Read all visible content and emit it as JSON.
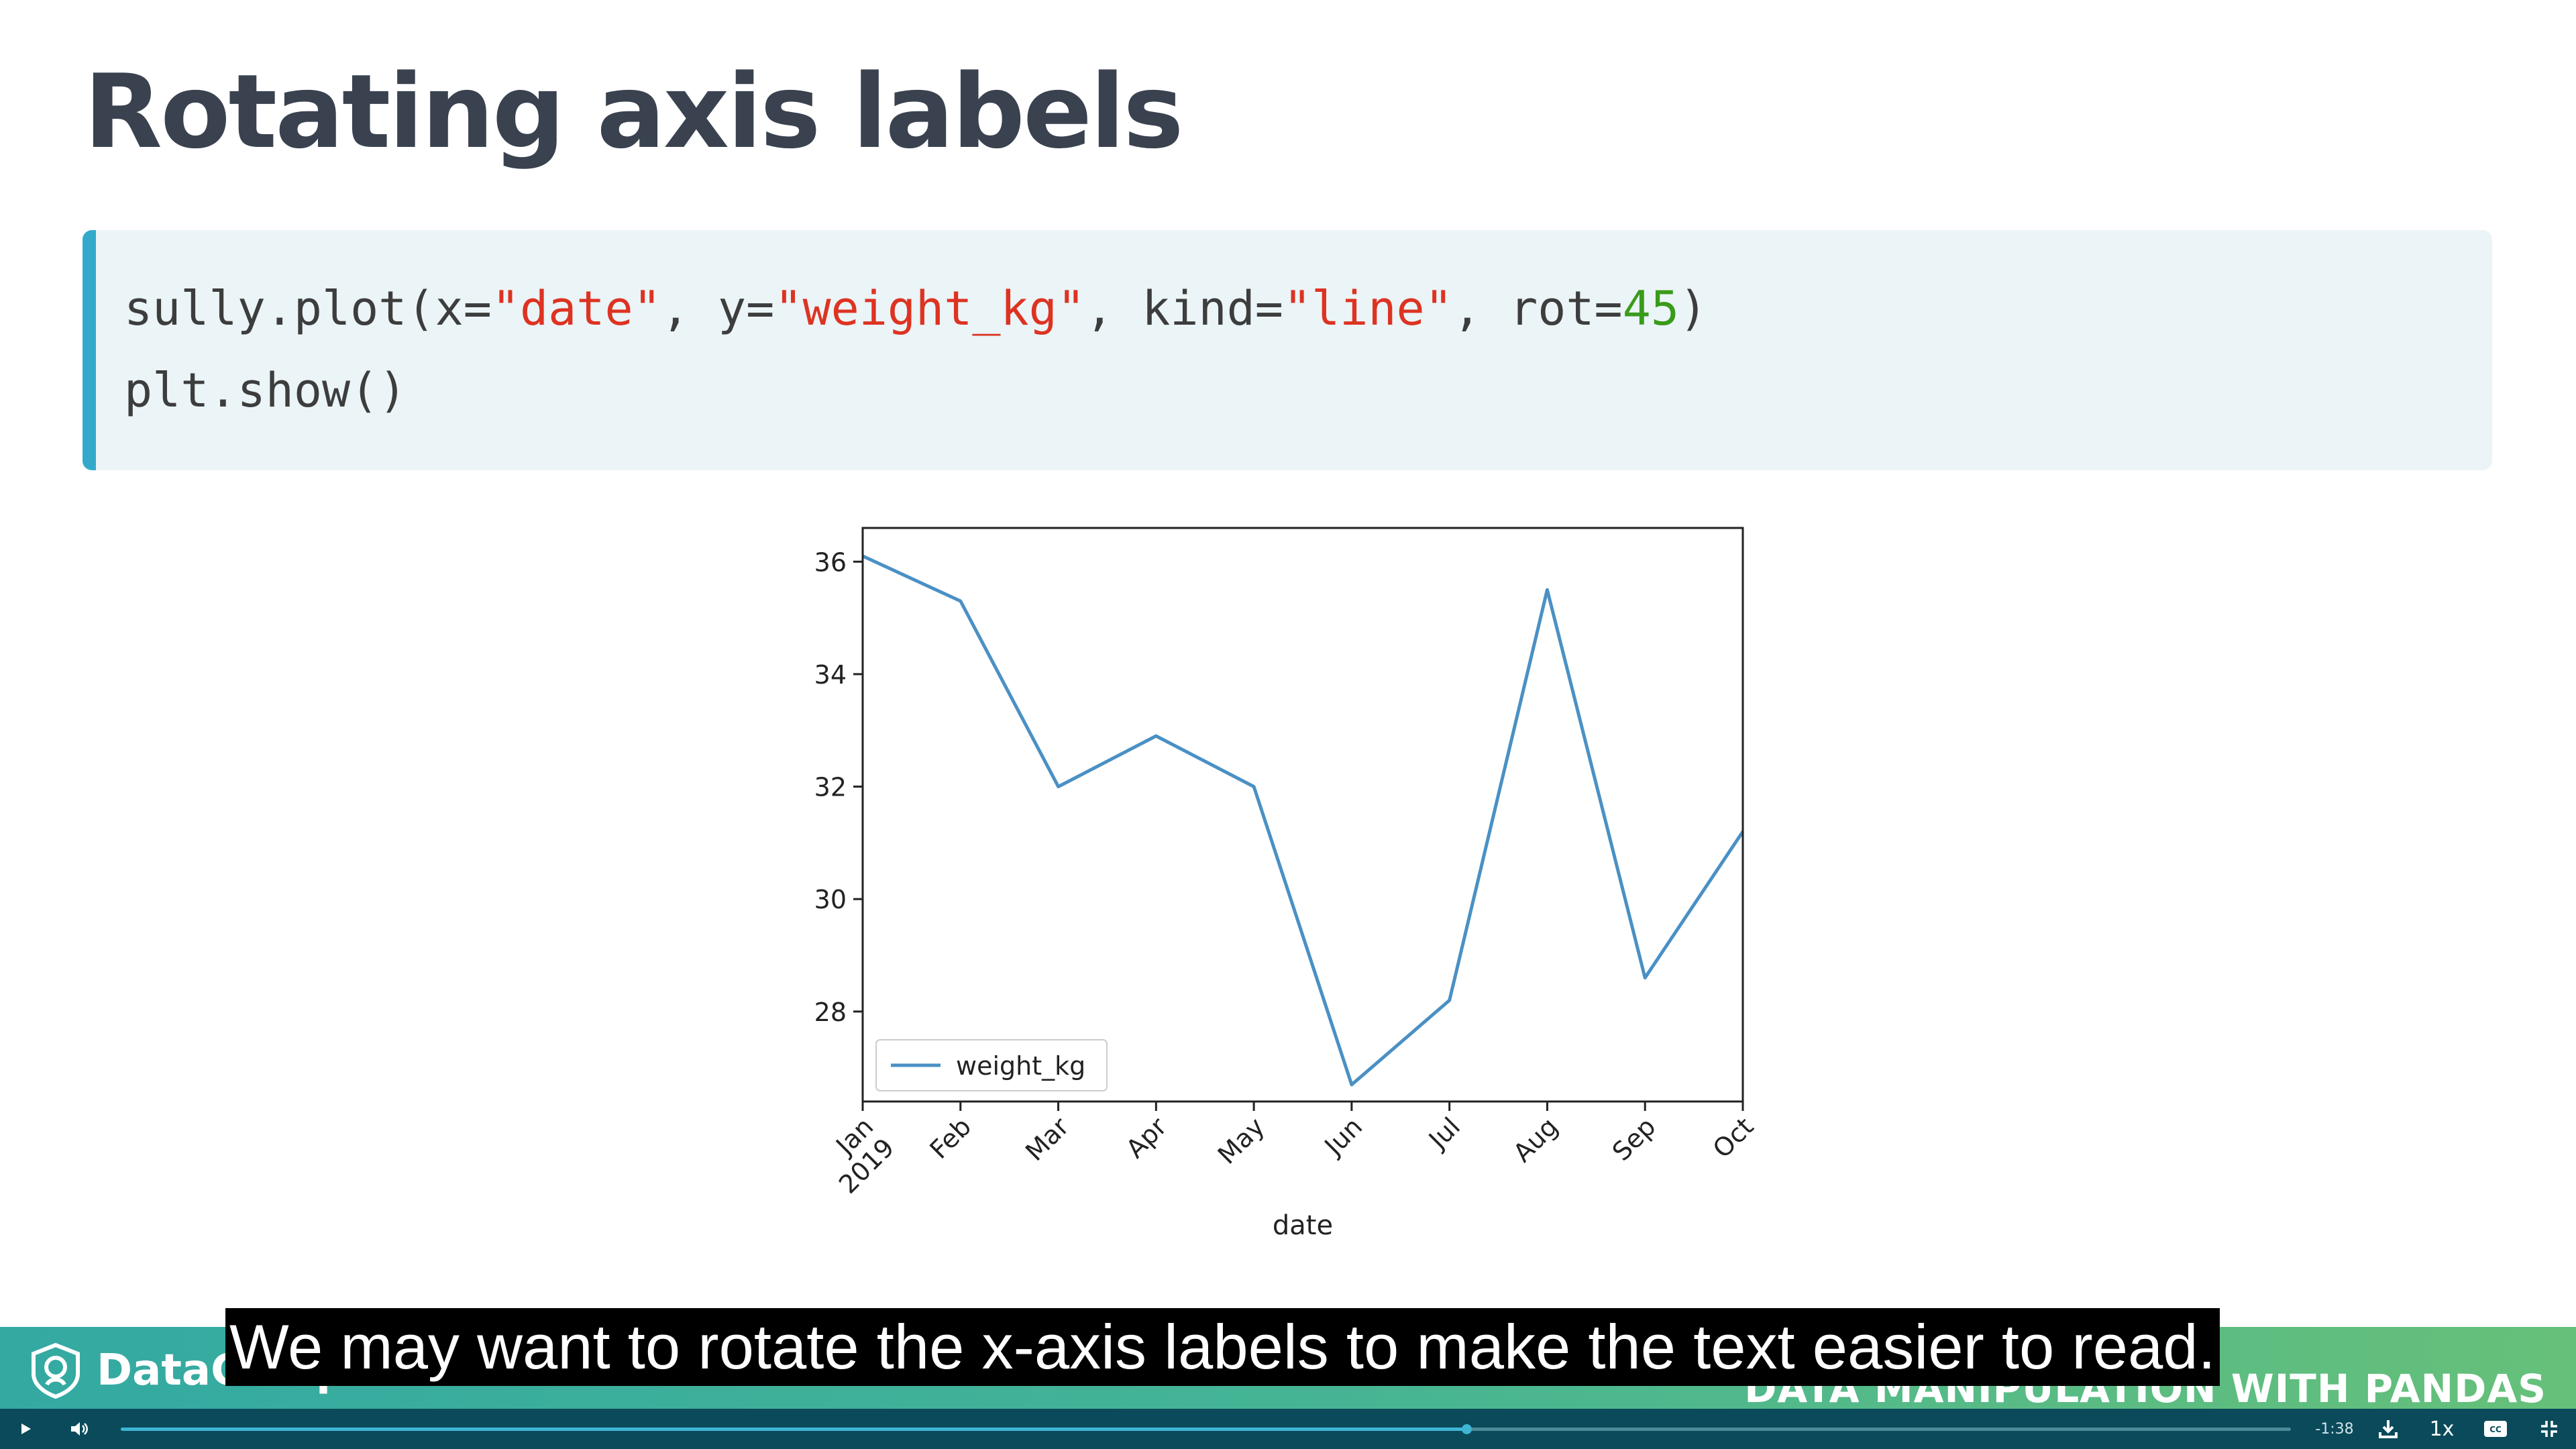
{
  "slide": {
    "title": "Rotating axis labels",
    "code": {
      "line1": [
        {
          "t": "sully.plot(x=",
          "k": "plain"
        },
        {
          "t": "\"date\"",
          "k": "str"
        },
        {
          "t": ", y=",
          "k": "plain"
        },
        {
          "t": "\"weight_kg\"",
          "k": "str"
        },
        {
          "t": ", kind=",
          "k": "plain"
        },
        {
          "t": "\"line\"",
          "k": "str"
        },
        {
          "t": ", rot=",
          "k": "plain"
        },
        {
          "t": "45",
          "k": "num"
        },
        {
          "t": ")",
          "k": "plain"
        }
      ],
      "line2": "plt.show()"
    }
  },
  "chart_data": {
    "type": "line",
    "x": [
      "Jan\n2019",
      "Feb",
      "Mar",
      "Apr",
      "May",
      "Jun",
      "Jul",
      "Aug",
      "Sep",
      "Oct"
    ],
    "series": [
      {
        "name": "weight_kg",
        "values": [
          36.1,
          35.3,
          32.0,
          32.9,
          32.0,
          26.7,
          28.2,
          35.5,
          28.6,
          31.2
        ],
        "color": "#4a90c4"
      }
    ],
    "xlabel": "date",
    "ylabel": "",
    "ylim": [
      26.4,
      36.6
    ],
    "yticks": [
      28,
      30,
      32,
      34,
      36
    ],
    "x_tick_rotation": 45,
    "legend": "lower-left",
    "grid": false
  },
  "footer": {
    "brand": "DataCamp",
    "course": "DATA MANIPULATION WITH PANDAS"
  },
  "caption": "We may want to rotate the x-axis labels to make the text easier to read.",
  "player": {
    "time_remaining": "-1:38",
    "speed": "1x",
    "progress": 0.62,
    "icons": [
      "play-icon",
      "volume-icon",
      "download-icon",
      "captions-icon",
      "fullscreen-exit-icon"
    ]
  }
}
